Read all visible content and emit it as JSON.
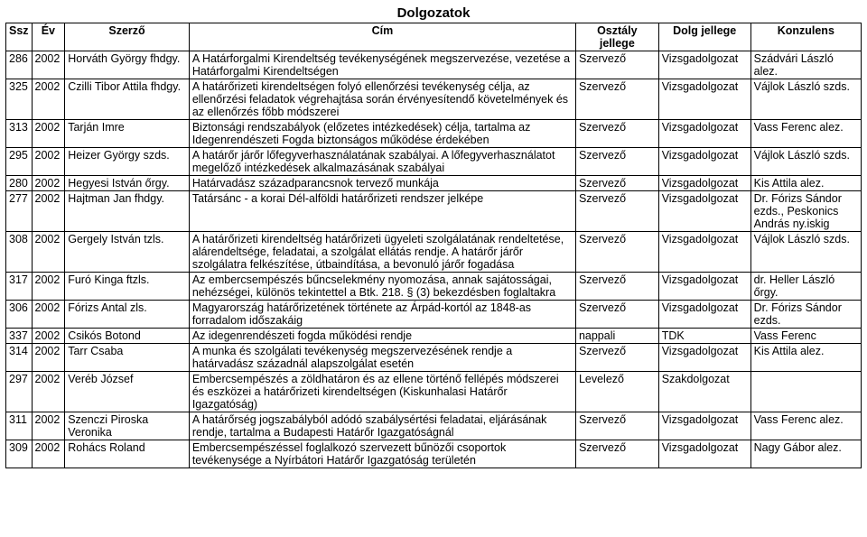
{
  "title": "Dolgozatok",
  "columns": [
    "Ssz",
    "Év",
    "Szerző",
    "Cím",
    "Osztály jellege",
    "Dolg jellege",
    "Konzulens"
  ],
  "rows": [
    {
      "ssz": "286",
      "ev": "2002",
      "szerzo": "Horváth György fhdgy.",
      "cim": "A Határforgalmi Kirendeltség tevékenységének megszervezése, vezetése a Határforgalmi Kirendeltségen",
      "oszt": "Szervező",
      "dolg": "Vizsgadolgozat",
      "konz": "Szádvári László alez."
    },
    {
      "ssz": "325",
      "ev": "2002",
      "szerzo": "Czilli Tibor Attila fhdgy.",
      "cim": "A határőrizeti kirendeltségen folyó ellenőrzési tevékenység célja, az ellenőrzési feladatok végrehajtása során érvényesítendő követelmények és az ellenőrzés főbb módszerei",
      "oszt": "Szervező",
      "dolg": "Vizsgadolgozat",
      "konz": "Vájlok László szds."
    },
    {
      "ssz": "313",
      "ev": "2002",
      "szerzo": "Tarján Imre",
      "cim": "Biztonsági rendszabályok (előzetes intézkedések) célja, tartalma az Idegenrendészeti Fogda biztonságos működése érdekében",
      "oszt": "Szervező",
      "dolg": "Vizsgadolgozat",
      "konz": "Vass Ferenc alez."
    },
    {
      "ssz": "295",
      "ev": "2002",
      "szerzo": "Heizer György szds.",
      "cim": "A határőr járőr lőfegyverhasználatának szabályai. A lőfegyverhasználatot megelőző intézkedések alkalmazásának szabályai",
      "oszt": "Szervező",
      "dolg": "Vizsgadolgozat",
      "konz": "Vájlok László szds."
    },
    {
      "ssz": "280",
      "ev": "2002",
      "szerzo": "Hegyesi István őrgy.",
      "cim": "Határvadász századparancsnok tervező munkája",
      "oszt": "Szervező",
      "dolg": "Vizsgadolgozat",
      "konz": "Kis Attila alez."
    },
    {
      "ssz": "277",
      "ev": "2002",
      "szerzo": "Hajtman Jan fhdgy.",
      "cim": "Tatársánc - a korai Dél-alföldi határőrizeti rendszer jelképe",
      "oszt": "Szervező",
      "dolg": "Vizsgadolgozat",
      "konz": "Dr. Fórizs Sándor ezds., Peskonics András ny.iskig"
    },
    {
      "ssz": "308",
      "ev": "2002",
      "szerzo": "Gergely István tzls.",
      "cim": "A határőrizeti kirendeltség határőrizeti ügyeleti szolgálatának rendeltetése, alárendeltsége, feladatai, a szolgálat ellátás rendje. A határőr járőr szolgálatra felkészítése, útbaindítása, a bevonuló járőr fogadása",
      "oszt": "Szervező",
      "dolg": "Vizsgadolgozat",
      "konz": "Vájlok László szds."
    },
    {
      "ssz": "317",
      "ev": "2002",
      "szerzo": "Furó Kinga ftzls.",
      "cim": "Az embercsempészés bűncselekmény nyomozása, annak sajátosságai, nehézségei, különös tekintettel a Btk. 218. § (3) bekezdésben foglaltakra",
      "oszt": "Szervező",
      "dolg": "Vizsgadolgozat",
      "konz": "dr. Heller László őrgy."
    },
    {
      "ssz": "306",
      "ev": "2002",
      "szerzo": "Fórizs Antal zls.",
      "cim": "Magyarország határőrizetének története az Árpád-kortól az 1848-as forradalom időszakáig",
      "oszt": "Szervező",
      "dolg": "Vizsgadolgozat",
      "konz": "Dr. Fórizs Sándor ezds."
    },
    {
      "ssz": "337",
      "ev": "2002",
      "szerzo": "Csikós Botond",
      "cim": "Az idegenrendészeti fogda működési rendje",
      "oszt": "nappali",
      "dolg": "TDK",
      "konz": "Vass Ferenc"
    },
    {
      "ssz": "314",
      "ev": "2002",
      "szerzo": "Tarr Csaba",
      "cim": "A munka és szolgálati tevékenység megszervezésének rendje a határvadász századnál alapszolgálat esetén",
      "oszt": "Szervező",
      "dolg": "Vizsgadolgozat",
      "konz": "Kis Attila alez."
    },
    {
      "ssz": "297",
      "ev": "2002",
      "szerzo": "Veréb József",
      "cim": "Embercsempészés a zöldhatáron és az ellene történő fellépés módszerei és eszközei a határőrizeti kirendeltségen (Kiskunhalasi Határőr Igazgatóság)",
      "oszt": "Levelező",
      "dolg": "Szakdolgozat",
      "konz": ""
    },
    {
      "ssz": "311",
      "ev": "2002",
      "szerzo": "Szenczi Piroska Veronika",
      "cim": "A határőrség jogszabályból adódó szabálysértési feladatai, eljárásának rendje, tartalma a Budapesti Határőr Igazgatóságnál",
      "oszt": "Szervező",
      "dolg": "Vizsgadolgozat",
      "konz": "Vass Ferenc alez."
    },
    {
      "ssz": "309",
      "ev": "2002",
      "szerzo": "Rohács Roland",
      "cim": "Embercsempészéssel foglalkozó szervezett bűnözői csoportok tevékenysége a Nyírbátori Határőr Igazgatóság területén",
      "oszt": "Szervező",
      "dolg": "Vizsgadolgozat",
      "konz": "Nagy Gábor alez."
    }
  ]
}
